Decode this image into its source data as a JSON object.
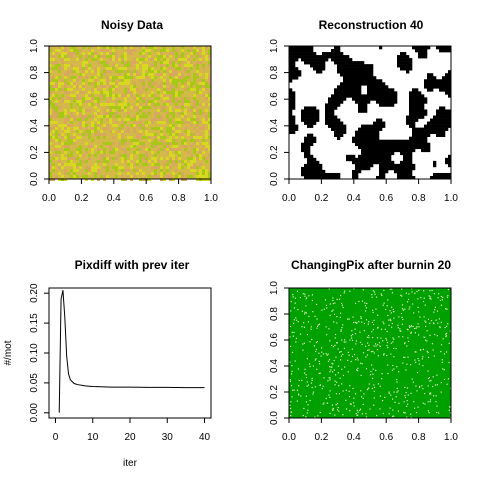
{
  "colors": {
    "background": "#ffffff",
    "noisy_base": "#d4b84a",
    "noisy_yellow": "#d8d820",
    "noisy_green": "#a8c818",
    "noisy_tan": "#d8a860",
    "reconstruction_fg": "#000000",
    "reconstruction_bg": "#ffffff",
    "changing_base": "#00a000",
    "changing_speck": "#e0f0c0",
    "line": "#000000"
  },
  "chart_data": [
    {
      "type": "heatmap",
      "title": "Noisy Data",
      "xlim": [
        0,
        1
      ],
      "ylim": [
        0,
        1
      ],
      "xticks": [
        "0.0",
        "0.2",
        "0.4",
        "0.6",
        "0.8",
        "1.0"
      ],
      "yticks": [
        "0.0",
        "0.2",
        "0.4",
        "0.6",
        "0.8",
        "1.0"
      ],
      "xlabel": "",
      "ylabel": ""
    },
    {
      "type": "heatmap",
      "title": "Reconstruction 40",
      "xlim": [
        0,
        1
      ],
      "ylim": [
        0,
        1
      ],
      "xticks": [
        "0.0",
        "0.2",
        "0.4",
        "0.6",
        "0.8",
        "1.0"
      ],
      "yticks": [
        "0.0",
        "0.2",
        "0.4",
        "0.6",
        "0.8",
        "1.0"
      ],
      "xlabel": "",
      "ylabel": "",
      "black_fraction": 0.45
    },
    {
      "type": "line",
      "title": "Pixdiff with prev iter",
      "xlabel": "iter",
      "ylabel": "#/mot",
      "xlim": [
        0,
        40
      ],
      "ylim": [
        0,
        0.2
      ],
      "xticks": [
        "0",
        "10",
        "20",
        "30",
        "40"
      ],
      "yticks": [
        "0.00",
        "0.05",
        "0.10",
        "0.15",
        "0.20"
      ],
      "grid": false,
      "x": [
        1,
        1.5,
        2,
        2.5,
        3,
        3.5,
        4,
        5,
        6,
        7,
        8,
        9,
        10,
        12,
        15,
        20,
        25,
        30,
        35,
        40
      ],
      "y": [
        0.0,
        0.19,
        0.205,
        0.16,
        0.095,
        0.065,
        0.055,
        0.049,
        0.047,
        0.046,
        0.045,
        0.0445,
        0.044,
        0.0435,
        0.043,
        0.043,
        0.0425,
        0.0425,
        0.042,
        0.042
      ]
    },
    {
      "type": "heatmap",
      "title": "ChangingPix after burnin  20",
      "xlim": [
        0,
        1
      ],
      "ylim": [
        0,
        1
      ],
      "xticks": [
        "0.0",
        "0.2",
        "0.4",
        "0.6",
        "0.8",
        "1.0"
      ],
      "yticks": [
        "0.0",
        "0.2",
        "0.4",
        "0.6",
        "0.8",
        "1.0"
      ],
      "xlabel": "",
      "ylabel": ""
    }
  ]
}
